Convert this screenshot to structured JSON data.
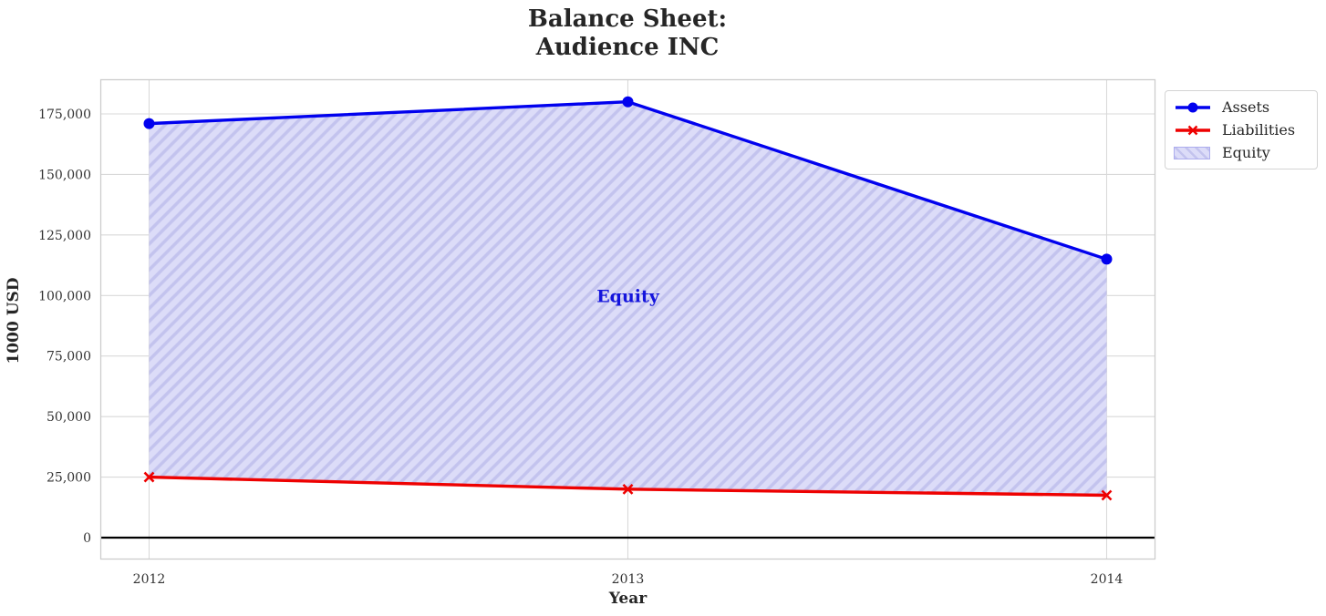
{
  "chart_data": {
    "type": "area",
    "title": "Balance Sheet:\nAudience INC",
    "title_lines": [
      "Balance Sheet:",
      "Audience INC"
    ],
    "xlabel": "Year",
    "ylabel": "1000 USD",
    "x": [
      2012,
      2013,
      2014
    ],
    "xtick_labels": [
      "2012",
      "2013",
      "2014"
    ],
    "series": [
      {
        "name": "Assets",
        "color": "#0101ee",
        "marker": "circle",
        "values": [
          171000,
          180000,
          115000
        ]
      },
      {
        "name": "Liabilities",
        "color": "#ee0101",
        "marker": "x",
        "values": [
          25000,
          20000,
          17500
        ]
      }
    ],
    "area": {
      "name": "Equity",
      "between": [
        "Assets",
        "Liabilities"
      ],
      "derived_values": [
        146000,
        160000,
        97500
      ],
      "fill_color": "#dcdcf8",
      "hatch_color": "#c3c3ee",
      "hatch_style": "diagonal-forward"
    },
    "annotation": {
      "text": "Equity",
      "x": 2013,
      "y": 100000,
      "color": "#1414dc"
    },
    "yticks": [
      0,
      25000,
      50000,
      75000,
      100000,
      125000,
      150000,
      175000
    ],
    "ytick_labels": [
      "0",
      "25,000",
      "50,000",
      "75,000",
      "100,000",
      "125,000",
      "150,000",
      "175,000"
    ],
    "ylim": [
      -8600,
      189000
    ],
    "grid": true,
    "grid_color": "#d9d9d9",
    "spine_color": "#cccccc",
    "zero_line": {
      "y": 0,
      "color": "#000000"
    },
    "text_color": "#333333",
    "title_color": "#262626",
    "legend": {
      "position": "outside-upper-right",
      "entries": [
        {
          "label": "Assets",
          "type": "line-circle"
        },
        {
          "label": "Liabilities",
          "type": "line-x"
        },
        {
          "label": "Equity",
          "type": "hatched-patch"
        }
      ]
    }
  }
}
